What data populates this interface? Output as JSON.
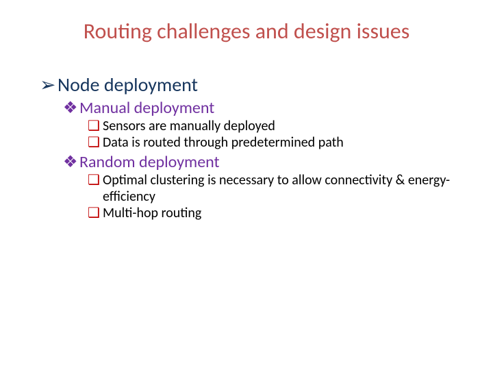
{
  "title": "Routing challenges and design issues",
  "bullets": {
    "arrow": "➢",
    "diamond": "❖",
    "square": "❑"
  },
  "colors": {
    "title": "#c0504d",
    "level1": "#17365d",
    "level2": "#7030a0",
    "level3_bullet": "#c00000",
    "level3_text": "#000000",
    "background": "#ffffff"
  },
  "font_sizes": {
    "title": 32,
    "l1": 28,
    "l2": 24,
    "l3": 20
  },
  "l1_items": [
    {
      "text": "Node deployment",
      "l2_items": [
        {
          "text": "Manual deployment",
          "l3_items": [
            "Sensors are manually deployed",
            "Data is routed through predetermined path"
          ]
        },
        {
          "text": "Random deployment",
          "l3_items": [
            "Optimal clustering is necessary to allow connectivity & energy-efficiency",
            "Multi-hop routing"
          ]
        }
      ]
    }
  ]
}
